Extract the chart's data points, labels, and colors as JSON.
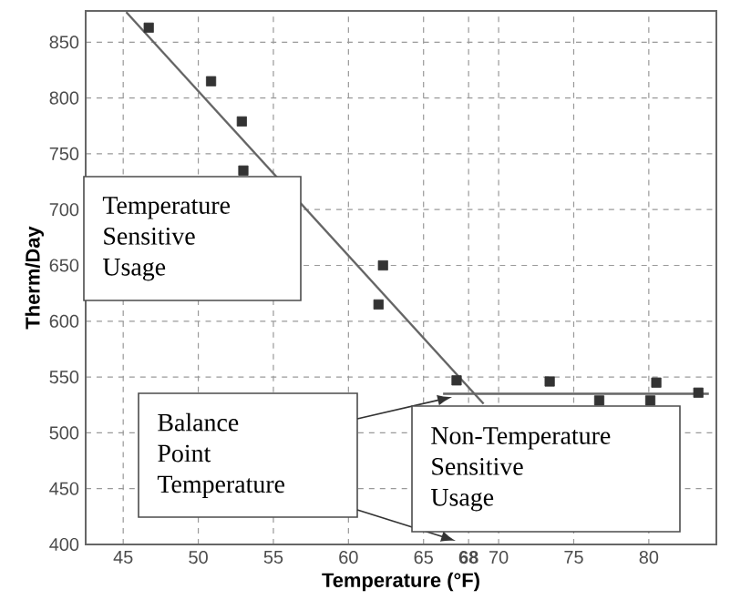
{
  "chart_data": {
    "type": "scatter",
    "xlabel": "Temperature (°F)",
    "ylabel": "Therm/Day",
    "xlim": [
      42.5,
      84.5
    ],
    "ylim": [
      400,
      878
    ],
    "xticks": [
      45,
      50,
      55,
      60,
      65,
      {
        "value": 68,
        "label": "68"
      },
      70,
      75,
      80
    ],
    "yticks": [
      400,
      450,
      500,
      550,
      600,
      650,
      700,
      750,
      800,
      850
    ],
    "grid": true,
    "annotations": [
      "Temperature Sensitive Usage",
      "Balance Point Temperature",
      "Non-Temperature Sensitive Usage"
    ],
    "series": [
      {
        "marker": "square",
        "color": "#333333",
        "x": [
          46.7,
          50.85,
          52.9,
          53.0,
          62.3,
          62.0,
          67.2,
          73.4,
          76.7,
          80.5,
          80.1,
          83.3
        ],
        "values": [
          863,
          815,
          779,
          735,
          650,
          615,
          547,
          546,
          529,
          545,
          529,
          536
        ]
      },
      {
        "type": "line",
        "marker": "none",
        "color": "#666666",
        "x": [
          45.2,
          69.0
        ],
        "values": [
          877,
          526
        ]
      },
      {
        "type": "line",
        "marker": "none",
        "color": "#666666",
        "x": [
          66.3,
          84.0
        ],
        "values": [
          535,
          535
        ]
      }
    ]
  }
}
